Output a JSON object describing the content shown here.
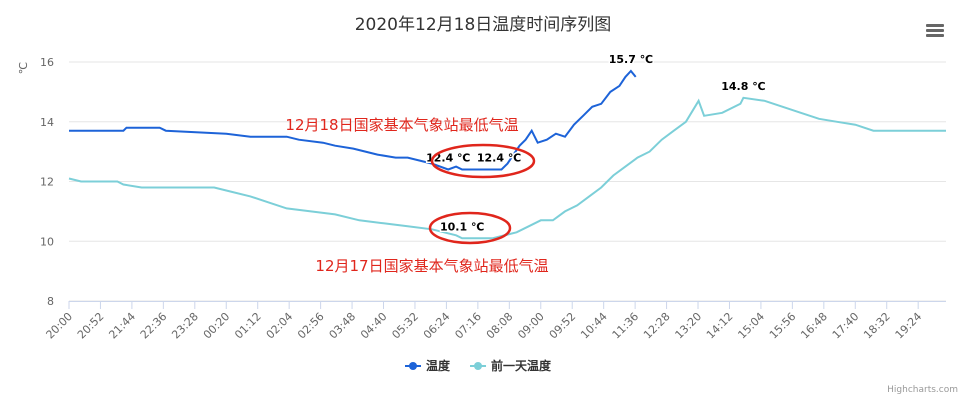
{
  "chart_data": {
    "type": "line",
    "title": "2020年12月18日温度时间序列图",
    "y_label": "℃",
    "credits": "Highcharts.com",
    "annotations": [
      "12月18日国家基本气象站最低气温",
      "12月17日国家基本气象站最低气温"
    ],
    "xlim": [
      0,
      1450
    ],
    "xticks": [
      {
        "value": 0,
        "label": "20:00"
      },
      {
        "value": 52,
        "label": "20:52"
      },
      {
        "value": 104,
        "label": "21:44"
      },
      {
        "value": 156,
        "label": "22:36"
      },
      {
        "value": 208,
        "label": "23:28"
      },
      {
        "value": 260,
        "label": "00:20"
      },
      {
        "value": 312,
        "label": "01:12"
      },
      {
        "value": 364,
        "label": "02:04"
      },
      {
        "value": 416,
        "label": "02:56"
      },
      {
        "value": 468,
        "label": "03:48"
      },
      {
        "value": 520,
        "label": "04:40"
      },
      {
        "value": 572,
        "label": "05:32"
      },
      {
        "value": 624,
        "label": "06:24"
      },
      {
        "value": 676,
        "label": "07:16"
      },
      {
        "value": 728,
        "label": "08:08"
      },
      {
        "value": 780,
        "label": "09:00"
      },
      {
        "value": 832,
        "label": "09:52"
      },
      {
        "value": 884,
        "label": "10:44"
      },
      {
        "value": 936,
        "label": "11:36"
      },
      {
        "value": 988,
        "label": "12:28"
      },
      {
        "value": 1040,
        "label": "13:20"
      },
      {
        "value": 1092,
        "label": "14:12"
      },
      {
        "value": 1144,
        "label": "15:04"
      },
      {
        "value": 1196,
        "label": "15:56"
      },
      {
        "value": 1248,
        "label": "16:48"
      },
      {
        "value": 1300,
        "label": "17:40"
      },
      {
        "value": 1352,
        "label": "18:32"
      },
      {
        "value": 1404,
        "label": "19:24"
      }
    ],
    "ylim": [
      8,
      16
    ],
    "yticks": [
      8,
      10,
      12,
      14,
      16
    ],
    "grid": true,
    "series": [
      {
        "name": "温度",
        "color": "#1d63d8",
        "x": [
          0,
          90,
          95,
          150,
          160,
          260,
          300,
          360,
          380,
          420,
          440,
          470,
          490,
          510,
          540,
          560,
          580,
          600,
          627,
          640,
          650,
          711,
          715,
          725,
          735,
          745,
          755,
          765,
          775,
          790,
          805,
          820,
          835,
          850,
          865,
          880,
          895,
          910,
          920,
          929,
          937
        ],
        "values": [
          13.7,
          13.7,
          13.8,
          13.8,
          13.7,
          13.6,
          13.5,
          13.5,
          13.4,
          13.3,
          13.2,
          13.1,
          13.0,
          12.9,
          12.8,
          12.8,
          12.7,
          12.6,
          12.4,
          12.5,
          12.4,
          12.4,
          12.4,
          12.6,
          12.9,
          13.2,
          13.4,
          13.7,
          13.3,
          13.4,
          13.6,
          13.5,
          13.9,
          14.2,
          14.5,
          14.6,
          15.0,
          15.2,
          15.5,
          15.7,
          15.5
        ],
        "value_labels": [
          null,
          null,
          null,
          null,
          null,
          null,
          null,
          null,
          null,
          null,
          null,
          null,
          null,
          null,
          null,
          null,
          null,
          null,
          "12.4 ℃",
          null,
          null,
          "12.4 ℃",
          null,
          null,
          null,
          null,
          null,
          null,
          null,
          null,
          null,
          null,
          null,
          null,
          null,
          null,
          null,
          null,
          null,
          "15.7 ℃",
          null
        ]
      },
      {
        "name": "前一天温度",
        "color": "#7ccfd8",
        "x": [
          0,
          20,
          80,
          90,
          120,
          240,
          260,
          300,
          330,
          360,
          400,
          440,
          480,
          520,
          560,
          600,
          640,
          650,
          700,
          740,
          760,
          780,
          800,
          820,
          840,
          860,
          880,
          900,
          920,
          940,
          960,
          980,
          1000,
          1020,
          1041,
          1050,
          1080,
          1110,
          1115,
          1150,
          1180,
          1210,
          1240,
          1270,
          1300,
          1330,
          1400,
          1450
        ],
        "values": [
          12.1,
          12.0,
          12.0,
          11.9,
          11.8,
          11.8,
          11.7,
          11.5,
          11.3,
          11.1,
          11.0,
          10.9,
          10.7,
          10.6,
          10.5,
          10.4,
          10.2,
          10.1,
          10.1,
          10.3,
          10.5,
          10.7,
          10.7,
          11.0,
          11.2,
          11.5,
          11.8,
          12.2,
          12.5,
          12.8,
          13.0,
          13.4,
          13.7,
          14.0,
          14.7,
          14.2,
          14.3,
          14.6,
          14.8,
          14.7,
          14.5,
          14.3,
          14.1,
          14.0,
          13.9,
          13.7,
          13.7,
          13.7
        ],
        "value_labels": [
          null,
          null,
          null,
          null,
          null,
          null,
          null,
          null,
          null,
          null,
          null,
          null,
          null,
          null,
          null,
          null,
          null,
          "10.1 ℃",
          null,
          null,
          null,
          null,
          null,
          null,
          null,
          null,
          null,
          null,
          null,
          null,
          null,
          null,
          null,
          null,
          null,
          null,
          null,
          null,
          "14.8 ℃",
          null,
          null,
          null,
          null,
          null,
          null,
          null,
          null,
          null
        ]
      }
    ]
  }
}
